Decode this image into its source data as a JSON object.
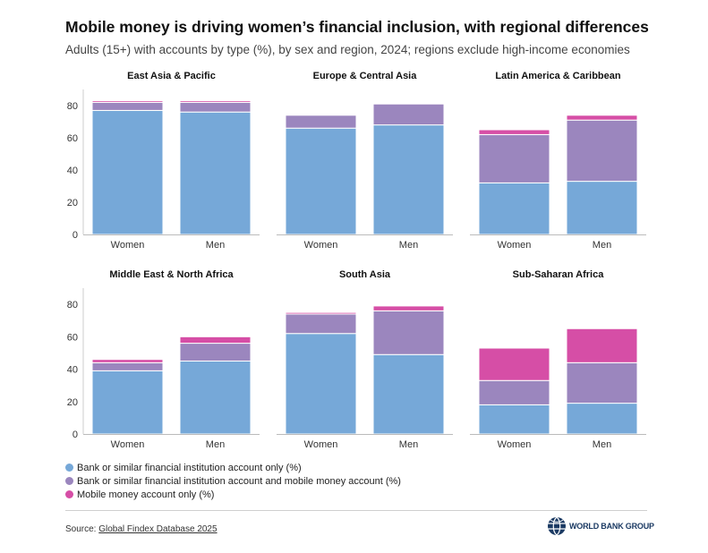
{
  "title": "Mobile money is driving women’s financial inclusion, with regional differences",
  "subtitle": "Adults (15+) with accounts by type (%), by sex and region, 2024; regions exclude high-income economies",
  "colors": {
    "bank_only": "#76a8d8",
    "bank_and_mobile": "#9b86be",
    "mobile_only": "#d64ea6"
  },
  "legend": [
    {
      "key": "bank_only",
      "label": "Bank or similar financial institution account only (%)"
    },
    {
      "key": "bank_and_mobile",
      "label": "Bank or similar financial institution account and mobile money account (%)"
    },
    {
      "key": "mobile_only",
      "label": "Mobile money account only (%)"
    }
  ],
  "source": {
    "prefix": "Source: ",
    "link_text": "Global Findex Database 2025"
  },
  "logo_text": "WORLD BANK GROUP",
  "chart_data": [
    {
      "type": "bar",
      "stacked": true,
      "title": "East Asia & Pacific",
      "categories": [
        "Women",
        "Men"
      ],
      "ylim": [
        0,
        90
      ],
      "yticks": [
        0,
        20,
        40,
        60,
        80
      ],
      "series": [
        {
          "name": "Bank or similar financial institution account only (%)",
          "values": [
            77,
            76
          ]
        },
        {
          "name": "Bank or similar financial institution account and mobile money account (%)",
          "values": [
            5,
            6
          ]
        },
        {
          "name": "Mobile money account only (%)",
          "values": [
            1,
            1
          ]
        }
      ]
    },
    {
      "type": "bar",
      "stacked": true,
      "title": "Europe & Central Asia",
      "categories": [
        "Women",
        "Men"
      ],
      "ylim": [
        0,
        90
      ],
      "yticks": [
        0,
        20,
        40,
        60,
        80
      ],
      "series": [
        {
          "name": "Bank or similar financial institution account only (%)",
          "values": [
            66,
            68
          ]
        },
        {
          "name": "Bank or similar financial institution account and mobile money account (%)",
          "values": [
            8,
            13
          ]
        },
        {
          "name": "Mobile money account only (%)",
          "values": [
            0,
            0
          ]
        }
      ]
    },
    {
      "type": "bar",
      "stacked": true,
      "title": "Latin America & Caribbean",
      "categories": [
        "Women",
        "Men"
      ],
      "ylim": [
        0,
        90
      ],
      "yticks": [
        0,
        20,
        40,
        60,
        80
      ],
      "series": [
        {
          "name": "Bank or similar financial institution account only (%)",
          "values": [
            32,
            33
          ]
        },
        {
          "name": "Bank or similar financial institution account and mobile money account (%)",
          "values": [
            30,
            38
          ]
        },
        {
          "name": "Mobile money account only (%)",
          "values": [
            3,
            3
          ]
        }
      ]
    },
    {
      "type": "bar",
      "stacked": true,
      "title": "Middle East & North Africa",
      "categories": [
        "Women",
        "Men"
      ],
      "ylim": [
        0,
        90
      ],
      "yticks": [
        0,
        20,
        40,
        60,
        80
      ],
      "series": [
        {
          "name": "Bank or similar financial institution account only (%)",
          "values": [
            39,
            45
          ]
        },
        {
          "name": "Bank or similar financial institution account and mobile money account (%)",
          "values": [
            5,
            11
          ]
        },
        {
          "name": "Mobile money account only (%)",
          "values": [
            2,
            4
          ]
        }
      ]
    },
    {
      "type": "bar",
      "stacked": true,
      "title": "South Asia",
      "categories": [
        "Women",
        "Men"
      ],
      "ylim": [
        0,
        90
      ],
      "yticks": [
        0,
        20,
        40,
        60,
        80
      ],
      "series": [
        {
          "name": "Bank or similar financial institution account only (%)",
          "values": [
            62,
            49
          ]
        },
        {
          "name": "Bank or similar financial institution account and mobile money account (%)",
          "values": [
            12,
            27
          ]
        },
        {
          "name": "Mobile money account only (%)",
          "values": [
            1,
            3
          ]
        }
      ]
    },
    {
      "type": "bar",
      "stacked": true,
      "title": "Sub-Saharan Africa",
      "categories": [
        "Women",
        "Men"
      ],
      "ylim": [
        0,
        90
      ],
      "yticks": [
        0,
        20,
        40,
        60,
        80
      ],
      "series": [
        {
          "name": "Bank or similar financial institution account only (%)",
          "values": [
            18,
            19
          ]
        },
        {
          "name": "Bank or similar financial institution account and mobile money account (%)",
          "values": [
            15,
            25
          ]
        },
        {
          "name": "Mobile money account only (%)",
          "values": [
            20,
            21
          ]
        }
      ]
    }
  ]
}
